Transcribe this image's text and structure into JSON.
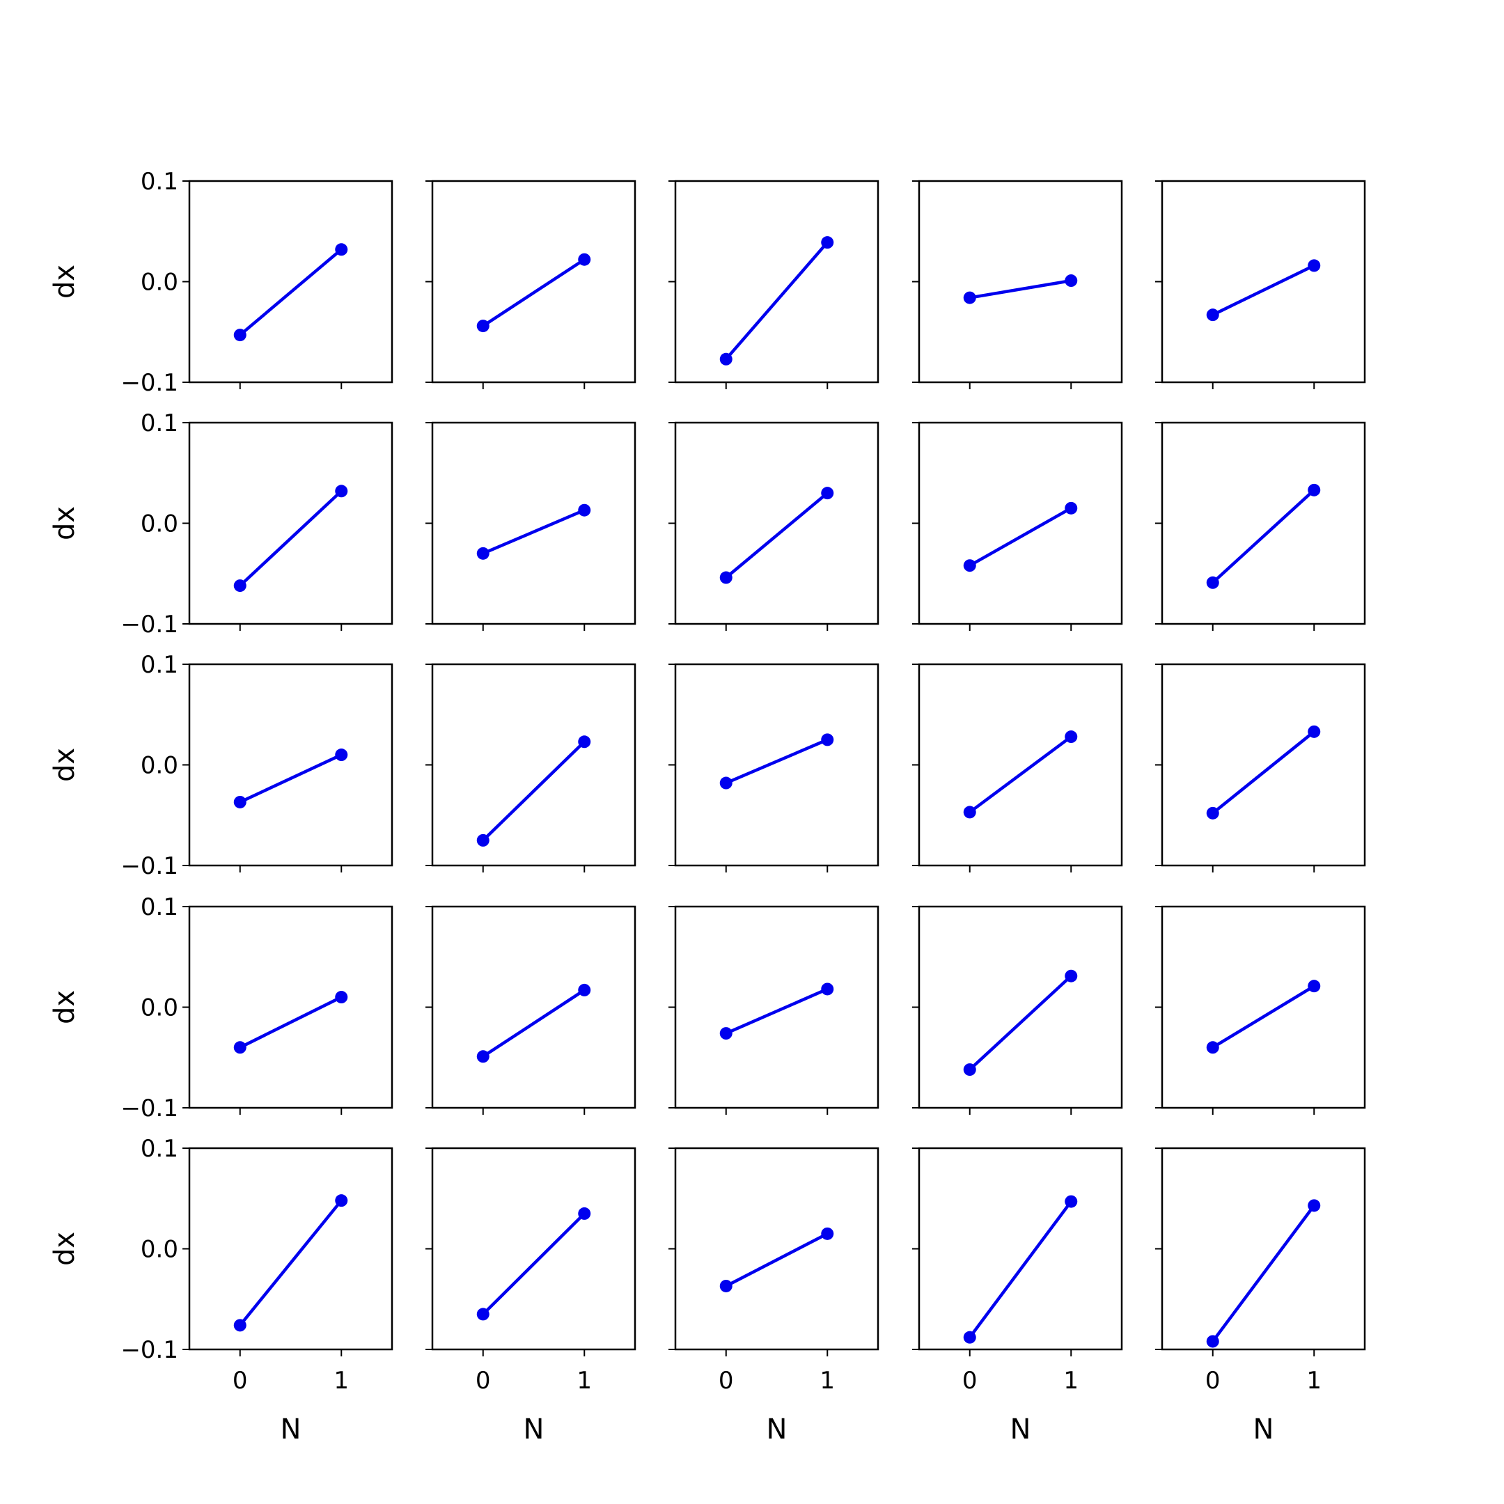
{
  "chart_data": {
    "type": "line",
    "layout": "5x5 grid of small multiples",
    "shared_x": true,
    "shared_y": true,
    "xlabel": "N",
    "ylabel": "dx",
    "x": [
      0,
      1
    ],
    "xlim": [
      -0.5,
      1.5
    ],
    "ylim": [
      -0.1,
      0.1
    ],
    "xticks": [
      "0",
      "1"
    ],
    "yticks": [
      "−0.1",
      "0.0",
      "0.1"
    ],
    "marker": "circle",
    "line_color": "#0000ee",
    "grid": false,
    "legend": "none",
    "panels": [
      [
        [
          -0.053,
          0.032
        ],
        [
          -0.044,
          0.022
        ],
        [
          -0.077,
          0.039
        ],
        [
          -0.016,
          0.001
        ],
        [
          -0.033,
          0.016
        ]
      ],
      [
        [
          -0.062,
          0.032
        ],
        [
          -0.03,
          0.013
        ],
        [
          -0.054,
          0.03
        ],
        [
          -0.042,
          0.015
        ],
        [
          -0.059,
          0.033
        ]
      ],
      [
        [
          -0.037,
          0.01
        ],
        [
          -0.075,
          0.023
        ],
        [
          -0.018,
          0.025
        ],
        [
          -0.047,
          0.028
        ],
        [
          -0.048,
          0.033
        ]
      ],
      [
        [
          -0.04,
          0.01
        ],
        [
          -0.049,
          0.017
        ],
        [
          -0.026,
          0.018
        ],
        [
          -0.062,
          0.031
        ],
        [
          -0.04,
          0.021
        ]
      ],
      [
        [
          -0.076,
          0.048
        ],
        [
          -0.065,
          0.035
        ],
        [
          -0.037,
          0.015
        ],
        [
          -0.088,
          0.047
        ],
        [
          -0.092,
          0.043
        ]
      ]
    ]
  }
}
